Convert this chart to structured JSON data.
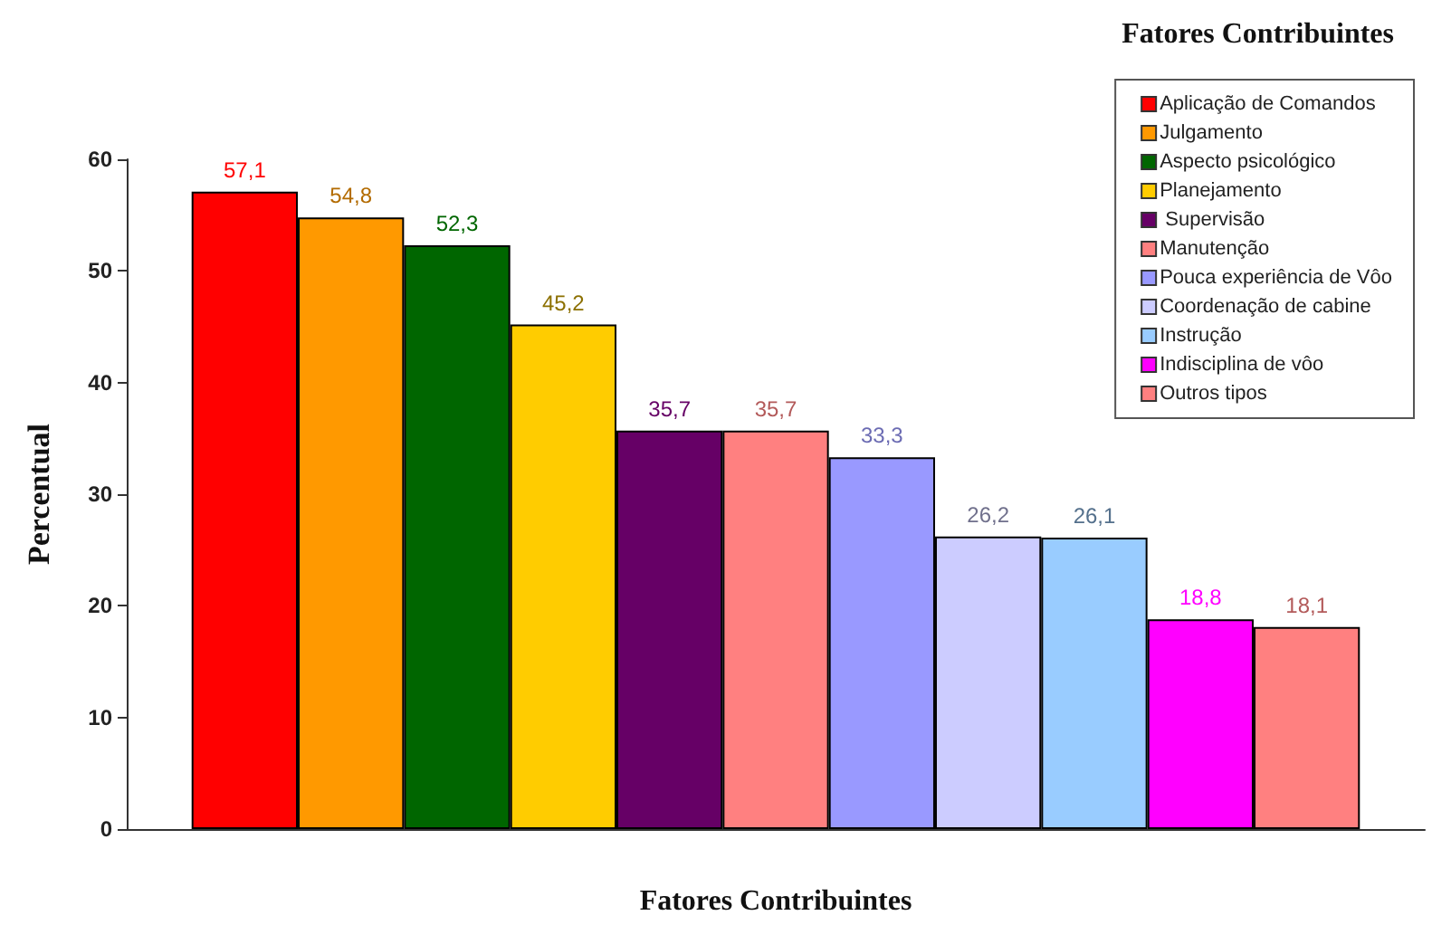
{
  "chart_data": {
    "type": "bar",
    "xlabel": "Fatores Contribuintes",
    "ylabel": "Percentual",
    "legend_title": "Fatores Contribuintes",
    "categories": [
      null
    ],
    "series": [
      {
        "name": "Aplicação de Comandos",
        "color": "#ff0000",
        "values": [
          57.1
        ],
        "value_labels": [
          "57,1"
        ]
      },
      {
        "name": "Julgamento",
        "color": "#ff9900",
        "values": [
          54.8
        ],
        "value_labels": [
          "54,8"
        ]
      },
      {
        "name": "Aspecto psicológico",
        "color": "#006600",
        "values": [
          52.3
        ],
        "value_labels": [
          "52,3"
        ]
      },
      {
        "name": "Planejamento",
        "color": "#ffcc00",
        "values": [
          45.2
        ],
        "value_labels": [
          "45,2"
        ]
      },
      {
        "name": " Supervisão",
        "color": "#660066",
        "values": [
          35.7
        ],
        "value_labels": [
          "35,7"
        ]
      },
      {
        "name": "Manutenção",
        "color": "#ff8080",
        "values": [
          35.7
        ],
        "value_labels": [
          "35,7"
        ]
      },
      {
        "name": "Pouca experiência de Vôo",
        "color": "#9999ff",
        "values": [
          33.3
        ],
        "value_labels": [
          "33,3"
        ]
      },
      {
        "name": "Coordenação de cabine",
        "color": "#ccccff",
        "values": [
          26.2
        ],
        "value_labels": [
          "26,2"
        ]
      },
      {
        "name": "Instrução",
        "color": "#99ccff",
        "values": [
          26.1
        ],
        "value_labels": [
          "26,1"
        ]
      },
      {
        "name": "Indisciplina de vôo",
        "color": "#ff00ff",
        "values": [
          18.8
        ],
        "value_labels": [
          "18,8"
        ]
      },
      {
        "name": "Outros tipos",
        "color": "#ff8080",
        "values": [
          18.1
        ],
        "value_labels": [
          "18,1"
        ]
      }
    ],
    "ylim": [
      0,
      60
    ],
    "yticks": [
      0,
      10,
      20,
      30,
      40,
      50,
      60
    ],
    "grid": false,
    "legend": "top right"
  }
}
